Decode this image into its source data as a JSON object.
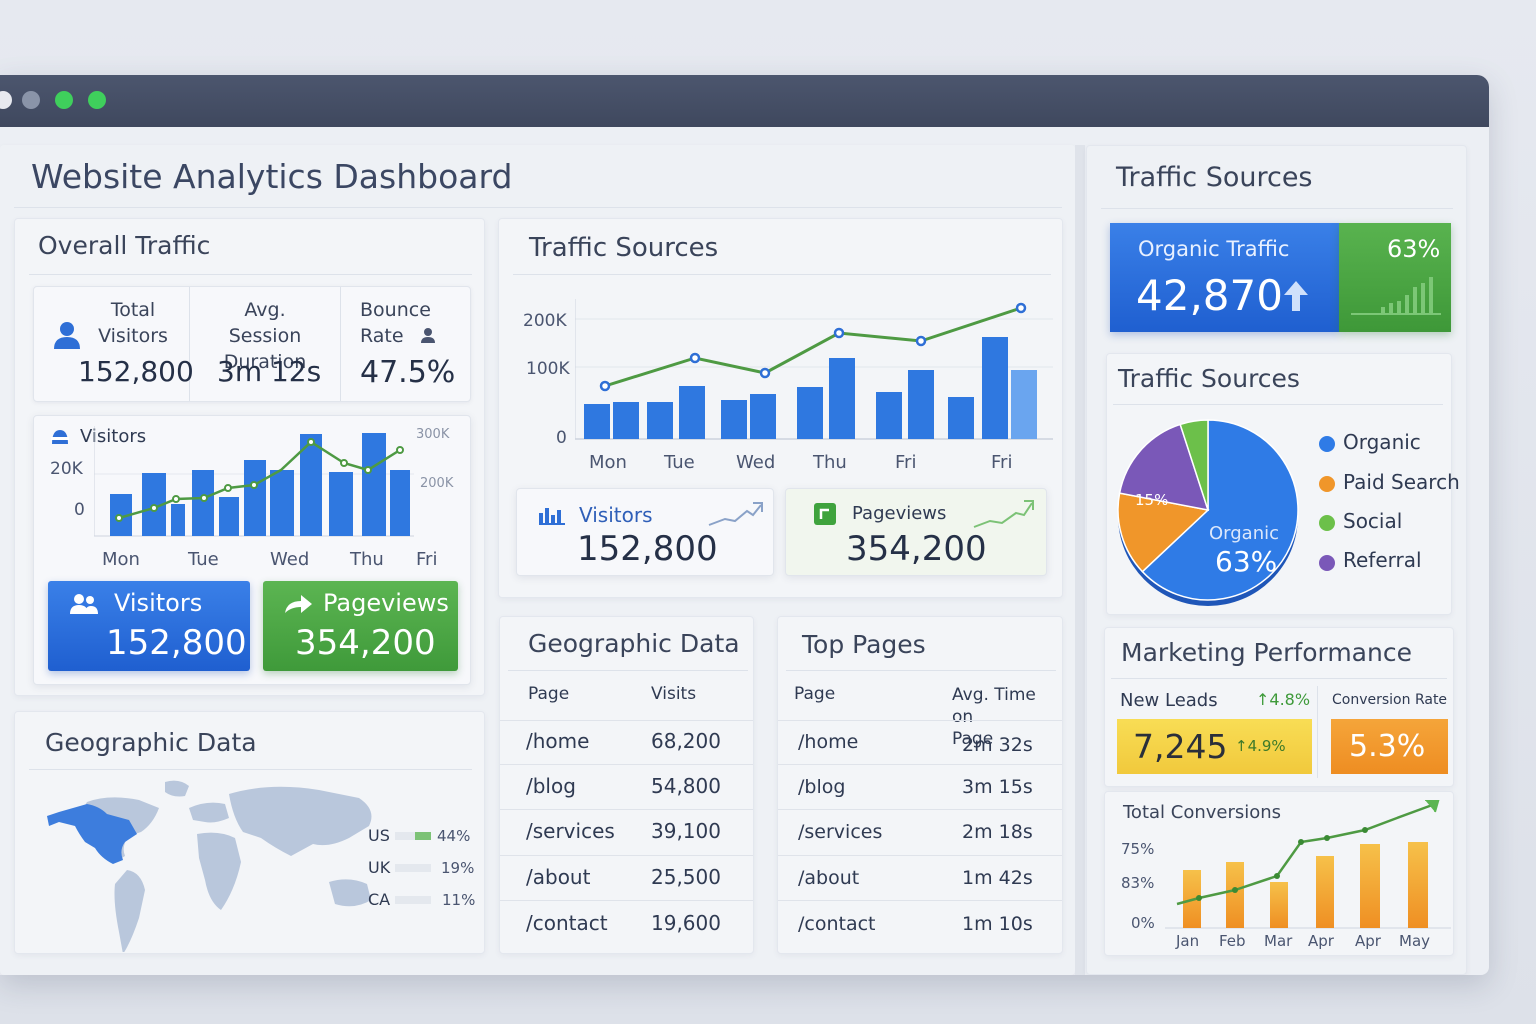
{
  "dashboard_title": "Website Analytics Dashboard",
  "overall": {
    "title": "Overall Traffic",
    "stats": [
      {
        "label": "Total\nVisitors",
        "value": "152,800"
      },
      {
        "label": "Avg. Session\nDuration",
        "value": "3m 12s"
      },
      {
        "label": "Bounce\nRate",
        "value": "47.5%"
      }
    ],
    "mini_chart": {
      "legend": "Visitors",
      "y_ticks": [
        "20K",
        "0"
      ],
      "right_ticks": [
        "300K",
        "200K"
      ],
      "days": [
        "Mon",
        "Tue",
        "Wed",
        "Thu",
        "Fri"
      ]
    },
    "visitors_tile": {
      "label": "Visitors",
      "value": "152,800"
    },
    "pageviews_tile": {
      "label": "Pageviews",
      "value": "354,200"
    }
  },
  "traffic_center": {
    "title": "Traffic Sources",
    "y_ticks": [
      "200K",
      "100K",
      "0"
    ],
    "days": [
      "Mon",
      "Tue",
      "Wed",
      "Thu",
      "Fri",
      "Fri"
    ],
    "visitors_card": {
      "label": "Visitors",
      "value": "152,800"
    },
    "pageviews_card": {
      "label": "Pageviews",
      "value": "354,200"
    }
  },
  "geo_left": {
    "title": "Geographic Data",
    "countries": [
      {
        "code": "US",
        "pct": "44%",
        "share": 0.44
      },
      {
        "code": "UK",
        "pct": "19%",
        "share": 0.19
      },
      {
        "code": "CA",
        "pct": "11%",
        "share": 0.11
      }
    ]
  },
  "geo_table": {
    "title": "Geographic Data",
    "headers": [
      "Page",
      "Visits"
    ],
    "rows": [
      [
        "/home",
        "68,200"
      ],
      [
        "/blog",
        "54,800"
      ],
      [
        "/services",
        "39,100"
      ],
      [
        "/about",
        "25,500"
      ],
      [
        "/contact",
        "19,600"
      ]
    ]
  },
  "top_pages": {
    "title": "Top Pages",
    "headers": [
      "Page",
      "Avg. Time on\nPage"
    ],
    "rows": [
      [
        "/home",
        "2m 32s"
      ],
      [
        "/blog",
        "3m 15s"
      ],
      [
        "/services",
        "2m 18s"
      ],
      [
        "/about",
        "1m 42s"
      ],
      [
        "/contact",
        "1m 10s"
      ]
    ]
  },
  "right": {
    "title": "Traffic Sources",
    "organic_tile": {
      "label": "Organic Traffic",
      "value": "42,870",
      "pct": "63%"
    },
    "pie_title": "Traffic Sources",
    "pie": {
      "slices": [
        {
          "name": "Organic",
          "value": 63,
          "color": "#2f7be6"
        },
        {
          "name": "Paid Search",
          "value": 15,
          "color": "#f0962a"
        },
        {
          "name": "Social",
          "value": 5,
          "color": "#6cc04a"
        },
        {
          "name": "Referral",
          "value": 17,
          "color": "#7a58b8"
        }
      ],
      "label_small": "15%",
      "label_main_name": "Organic",
      "label_main_pct": "63%"
    },
    "marketing": {
      "title": "Marketing Performance",
      "new_leads_label": "New Leads",
      "new_leads_delta": "4.8%",
      "new_leads_value": "7,245",
      "new_leads_sub_delta": "4.9%",
      "conversion_label": "Conversion Rate",
      "conversion_value": "5.3%"
    },
    "conversions": {
      "title": "Total Conversions",
      "y_ticks": [
        "75%",
        "83%",
        "0%"
      ],
      "months": [
        "Jan",
        "Feb",
        "Mar",
        "Apr",
        "Apr",
        "May"
      ]
    }
  },
  "colors": {
    "blue": "#2a6fdc",
    "green": "#4ea844",
    "orange": "#f29a2e",
    "yellow": "#f3d34a",
    "line_green": "#4e9a43",
    "titlebar": "#414a60"
  }
}
